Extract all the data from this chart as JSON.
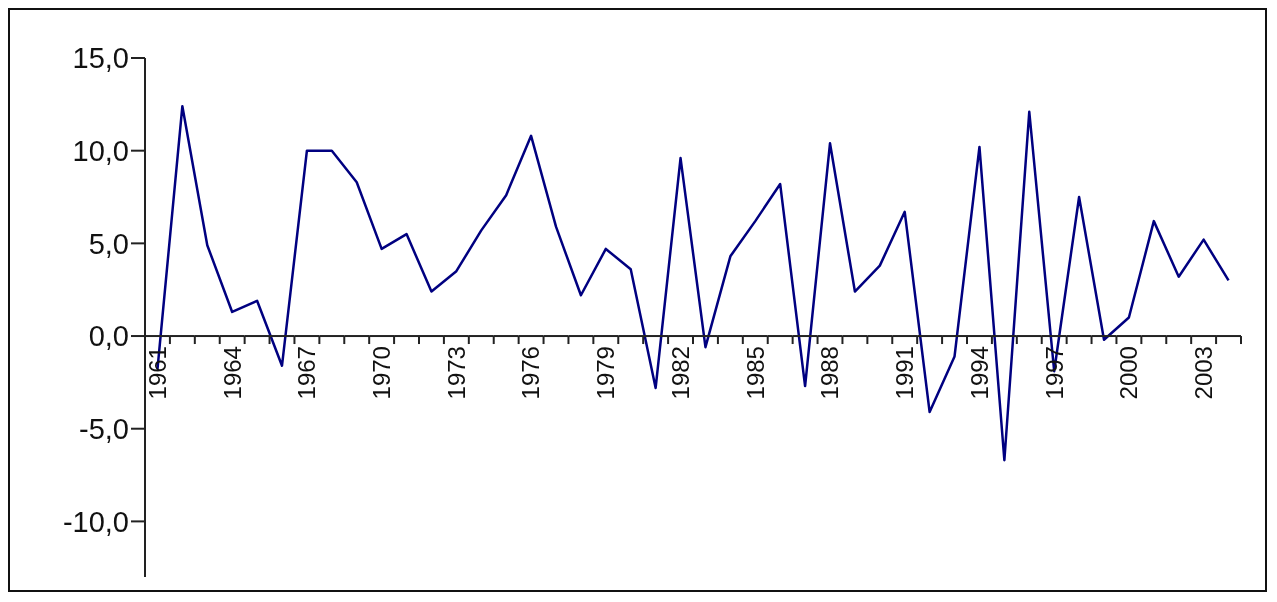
{
  "chart_data": {
    "type": "line",
    "marker": "none",
    "line_style": "solid",
    "grid": false,
    "legend": false,
    "categories": [
      "1961",
      null,
      null,
      "1964",
      null,
      null,
      "1967",
      null,
      null,
      "1970",
      null,
      null,
      "1973",
      null,
      null,
      "1976",
      null,
      null,
      "1979",
      null,
      null,
      "1982",
      null,
      null,
      "1985",
      null,
      null,
      "1988",
      null,
      null,
      "1991",
      null,
      null,
      "1994",
      null,
      null,
      "1997",
      null,
      null,
      "2000",
      null,
      null,
      "2003",
      null
    ],
    "series": [
      {
        "color": "#000080",
        "values": [
          -1.8,
          12.4,
          4.9,
          1.3,
          1.9,
          -1.6,
          10.0,
          10.0,
          8.3,
          4.7,
          5.5,
          2.4,
          3.5,
          5.7,
          7.6,
          10.8,
          5.9,
          2.2,
          4.7,
          3.6,
          -2.8,
          9.6,
          -0.6,
          4.3,
          6.2,
          8.2,
          -2.7,
          10.4,
          2.4,
          3.8,
          6.7,
          -4.1,
          -1.1,
          10.2,
          -6.7,
          12.1,
          -1.9,
          7.5,
          -0.2,
          1.0,
          6.2,
          3.2,
          5.2,
          3.0
        ]
      }
    ],
    "ylim": [
      -13,
      15
    ],
    "yticks": [
      {
        "value": 15,
        "label": "15,0"
      },
      {
        "value": 10,
        "label": "10,0"
      },
      {
        "value": 5,
        "label": "5,0"
      },
      {
        "value": 0,
        "label": "0,0"
      },
      {
        "value": -5,
        "label": "-5,0"
      },
      {
        "value": -10,
        "label": "-10,0"
      }
    ]
  }
}
